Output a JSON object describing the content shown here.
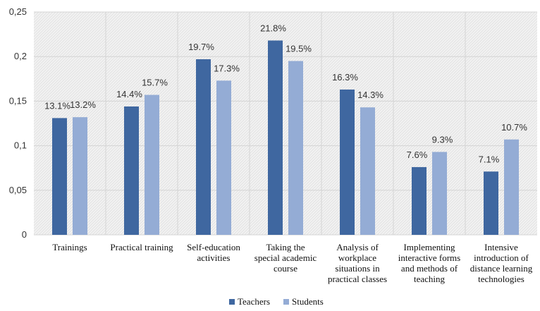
{
  "chart_data": {
    "type": "bar",
    "categories": [
      [
        "Trainings"
      ],
      [
        "Practical training"
      ],
      [
        "Self-education",
        "activities"
      ],
      [
        "Taking the",
        "special academic",
        "course"
      ],
      [
        "Analysis of",
        "workplace",
        "situations in",
        "practical classes"
      ],
      [
        "Implementing",
        "interactive forms",
        "and methods of",
        "teaching"
      ],
      [
        "Intensive",
        "introduction of",
        "distance learning",
        "technologies"
      ]
    ],
    "series": [
      {
        "name": "Teachers",
        "color": "#3f67a0",
        "values": [
          0.131,
          0.144,
          0.197,
          0.218,
          0.163,
          0.076,
          0.071
        ],
        "labels": [
          "13.1%",
          "14.4%",
          "19.7%",
          "21.8%",
          "16.3%",
          "7.6%",
          "7.1%"
        ]
      },
      {
        "name": "Students",
        "color": "#94acd5",
        "values": [
          0.132,
          0.157,
          0.173,
          0.195,
          0.143,
          0.093,
          0.107
        ],
        "labels": [
          "13.2%",
          "15.7%",
          "17.3%",
          "19.5%",
          "14.3%",
          "9.3%",
          "10.7%"
        ]
      }
    ],
    "ylim": [
      0,
      0.25
    ],
    "yticks": [
      0,
      0.05,
      0.1,
      0.15,
      0.2,
      0.25
    ],
    "ytick_labels": [
      "0",
      "0,05",
      "0,1",
      "0,15",
      "0,2",
      "0,25"
    ],
    "grid": true,
    "legend_position": "bottom-center",
    "title": "",
    "xlabel": "",
    "ylabel": ""
  }
}
